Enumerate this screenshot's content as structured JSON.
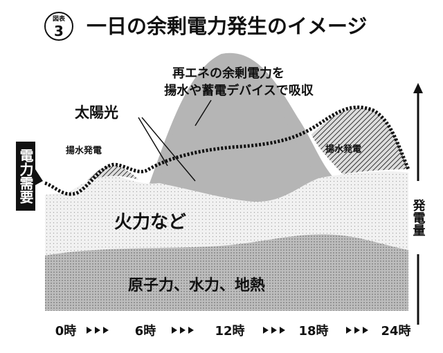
{
  "header": {
    "badge_label": "図表",
    "badge_number": "3",
    "title": "一日の余剰電力発生のイメージ"
  },
  "annotations": {
    "surplus_line1": "再エネの余剰電力を",
    "surplus_line2": "揚水や蓄電デバイスで吸収",
    "solar": "太陽光",
    "pumped_left": "揚水発電",
    "pumped_right": "揚水発電",
    "thermal": "火力など",
    "base": "原子力、水力、地熱"
  },
  "axes": {
    "demand": "電力需要",
    "supply": "発電量",
    "x_labels": [
      "0時",
      "6時",
      "12時",
      "18時",
      "24時"
    ]
  }
}
